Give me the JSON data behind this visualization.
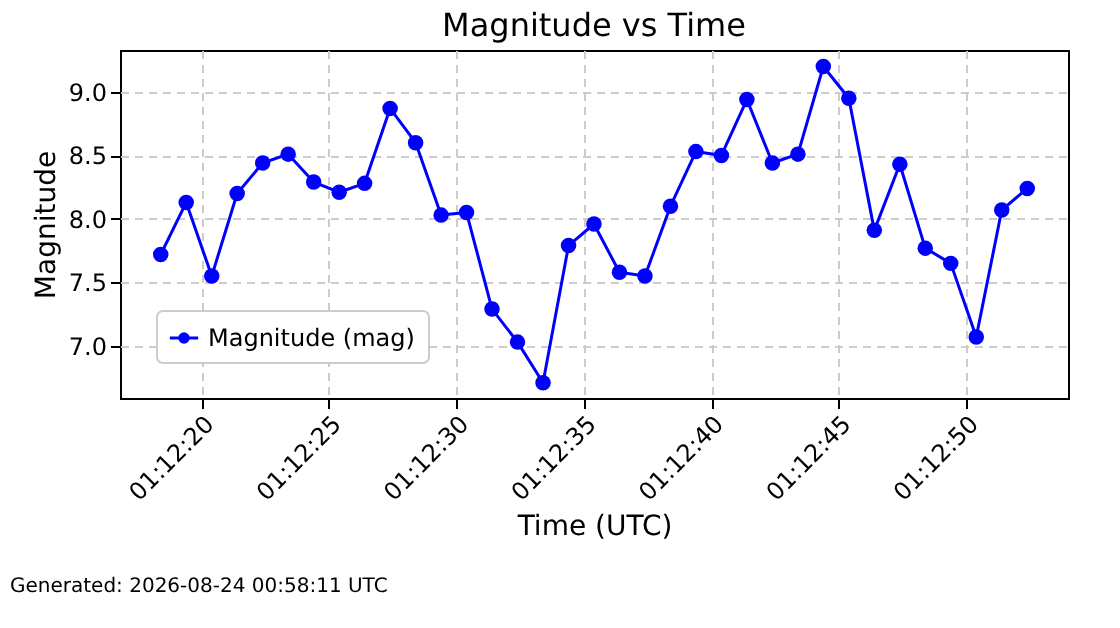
{
  "chart_data": {
    "type": "line",
    "title": "Magnitude vs Time",
    "xlabel": "Time (UTC)",
    "ylabel": "Magnitude",
    "x": [
      1.205111,
      1.205389,
      1.205667,
      1.205944,
      1.206222,
      1.2065,
      1.206778,
      1.207056,
      1.207333,
      1.207611,
      1.207889,
      1.208167,
      1.208444,
      1.208722,
      1.209,
      1.209278,
      1.209556,
      1.209833,
      1.210111,
      1.210389,
      1.210667,
      1.210944,
      1.211222,
      1.2115,
      1.211778,
      1.212056,
      1.212333,
      1.212611,
      1.212889,
      1.213167,
      1.213444,
      1.213722,
      1.214,
      1.214278,
      1.214556
    ],
    "series": [
      {
        "name": "Magnitude (mag)",
        "color": "#0000ff",
        "values": [
          7.72,
          8.13,
          7.55,
          8.2,
          8.44,
          8.51,
          8.29,
          8.21,
          8.28,
          8.87,
          8.6,
          8.03,
          8.05,
          7.29,
          7.03,
          6.71,
          7.79,
          7.96,
          7.58,
          7.55,
          8.1,
          8.53,
          8.5,
          8.94,
          8.44,
          8.51,
          9.2,
          8.95,
          7.91,
          8.43,
          7.77,
          7.65,
          7.07,
          8.07,
          8.24
        ]
      }
    ],
    "xlim": [
      1.204667,
      1.215
    ],
    "xticks": [
      {
        "value": 1.205556,
        "label": "01:12:20"
      },
      {
        "value": 1.206944,
        "label": "01:12:25"
      },
      {
        "value": 1.208333,
        "label": "01:12:30"
      },
      {
        "value": 1.209722,
        "label": "01:12:35"
      },
      {
        "value": 1.211111,
        "label": "01:12:40"
      },
      {
        "value": 1.2125,
        "label": "01:12:45"
      },
      {
        "value": 1.213889,
        "label": "01:12:50"
      }
    ],
    "ylim": [
      6.59,
      9.33
    ],
    "yticks": [
      {
        "value": 7,
        "label": "7.0"
      },
      {
        "value": 7.5,
        "label": "7.5"
      },
      {
        "value": 8,
        "label": "8.0"
      },
      {
        "value": 8.5,
        "label": "8.5"
      },
      {
        "value": 9,
        "label": "9.0"
      }
    ],
    "grid": true,
    "legend": "bottom left",
    "marker": "circle",
    "line_style": "solid",
    "annotations": [
      "Generated: 2026-08-24 00:58:11 UTC"
    ]
  }
}
